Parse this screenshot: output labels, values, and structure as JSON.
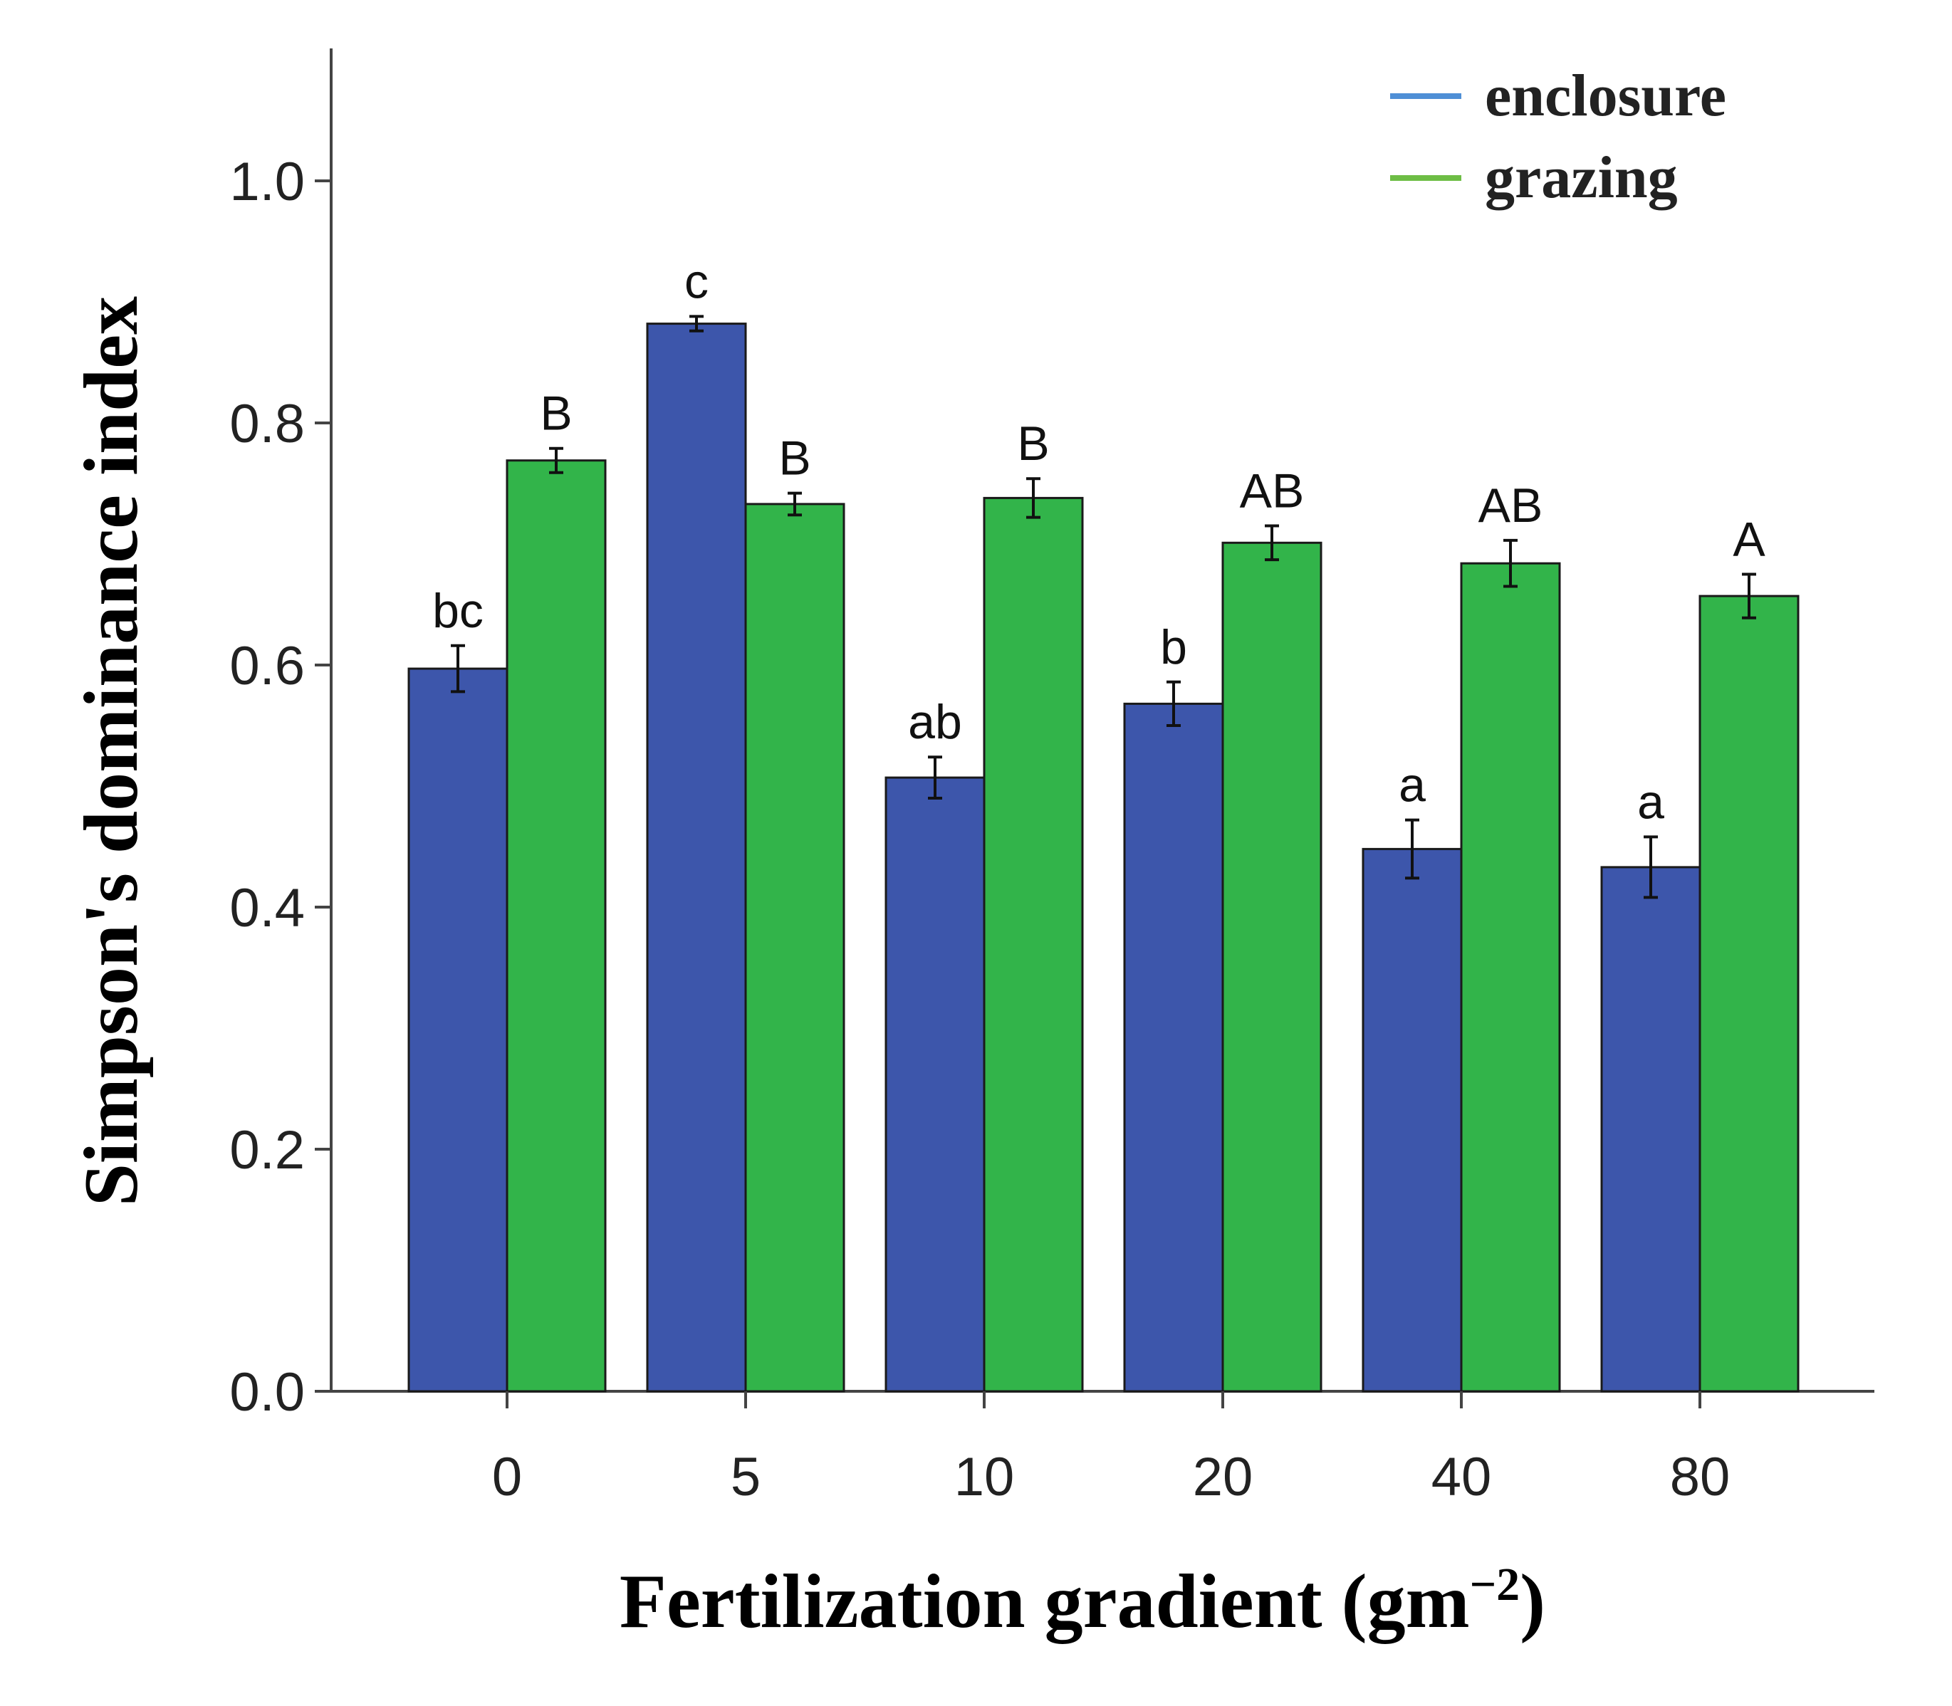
{
  "chart_data": {
    "type": "bar",
    "title": "",
    "xlabel": "Fertilization gradient",
    "xlabel_unit": "(gm",
    "xlabel_unit_exp": "−2",
    "xlabel_unit_close": ")",
    "ylabel": "Simpson's dominance index",
    "ylim": [
      0,
      1.1
    ],
    "yticks": [
      "0.0",
      "0.2",
      "0.4",
      "0.6",
      "0.8",
      "1.0"
    ],
    "ytick_values": [
      0,
      0.2,
      0.4,
      0.6,
      0.8,
      1.0
    ],
    "categories": [
      "0",
      "5",
      "10",
      "20",
      "40",
      "80"
    ],
    "legend_position": "top-right",
    "series": [
      {
        "name": "enclosure",
        "bar_color": "#3d56ab",
        "legend_color": "#4f8fd6",
        "values": [
          0.597,
          0.882,
          0.507,
          0.568,
          0.448,
          0.433
        ],
        "errors": [
          0.019,
          0.006,
          0.017,
          0.018,
          0.024,
          0.025
        ],
        "letters": [
          "bc",
          "c",
          "ab",
          "b",
          "a",
          "a"
        ]
      },
      {
        "name": "grazing",
        "bar_color": "#32b44a",
        "legend_color": "#6dbd45",
        "values": [
          0.769,
          0.733,
          0.738,
          0.701,
          0.684,
          0.657
        ],
        "errors": [
          0.01,
          0.009,
          0.016,
          0.014,
          0.019,
          0.018
        ],
        "letters": [
          "B",
          "B",
          "B",
          "AB",
          "AB",
          "A"
        ]
      }
    ]
  }
}
